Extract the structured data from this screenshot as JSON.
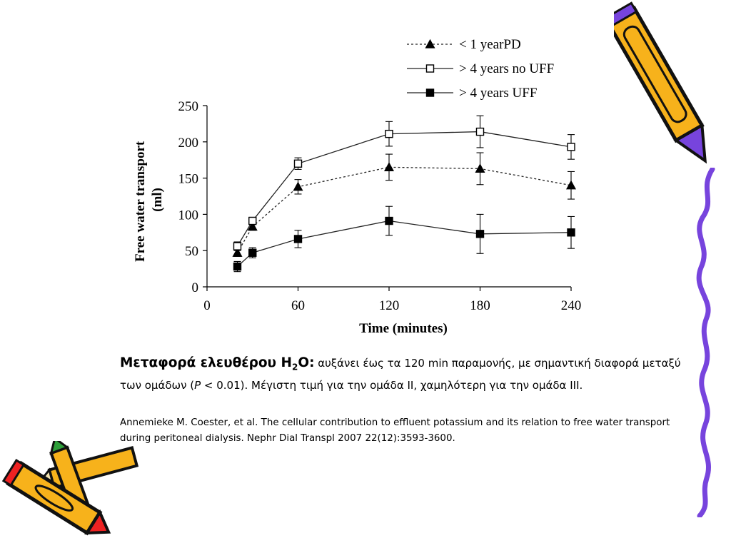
{
  "chart_data": {
    "type": "line",
    "xlabel": "Time (minutes)",
    "ylabel_lines": [
      "Free water transport",
      "(ml)"
    ],
    "xlim": [
      0,
      240
    ],
    "ylim": [
      0,
      250
    ],
    "xticks": [
      "0",
      "60",
      "120",
      "180",
      "240"
    ],
    "yticks": [
      "0",
      "50",
      "100",
      "150",
      "200",
      "250"
    ],
    "grid": false,
    "legend_position": "top-right",
    "series": [
      {
        "name": "< 1 yearPD",
        "marker": "triangle",
        "fill": "filled",
        "line": "dotted",
        "x": [
          20,
          30,
          60,
          120,
          180,
          240
        ],
        "y": [
          47,
          83,
          138,
          165,
          163,
          140
        ],
        "err": [
          5,
          5,
          10,
          18,
          22,
          19
        ]
      },
      {
        "name": "> 4 years no UFF",
        "marker": "square",
        "fill": "open",
        "line": "solid",
        "x": [
          20,
          30,
          60,
          120,
          180,
          240
        ],
        "y": [
          56,
          91,
          170,
          211,
          214,
          193
        ],
        "err": [
          6,
          5,
          8,
          17,
          22,
          17
        ]
      },
      {
        "name": "> 4 years UFF",
        "marker": "square",
        "fill": "filled",
        "line": "solid",
        "x": [
          20,
          30,
          60,
          120,
          180,
          240
        ],
        "y": [
          28,
          47,
          66,
          91,
          73,
          75
        ],
        "err": [
          7,
          7,
          12,
          20,
          27,
          22
        ]
      }
    ]
  },
  "caption": {
    "lead_text": "Μεταφορά ελευθέρου H",
    "lead_sub": "2",
    "lead_after": "O:",
    "body_1": " αυξάνει έως τα 120 min παραμονής, με σημαντική διαφορά μεταξύ των ομάδων (",
    "p_italic": "P",
    "body_2": " < 0.01). Μέγιστη τιμή για την ομάδα ΙΙ, χαμηλότερη για την ομάδα ΙΙΙ."
  },
  "reference": "Annemieke M. Coester, et al. The cellular contribution to effluent potassium and its relation to free water transport during peritoneal dialysis. Nephr Dial Transpl 2007 22(12):3593-3600.",
  "decorations": {
    "pencil_yellow": "#f7b21b",
    "pencil_purple": "#7744dd",
    "pencil_red": "#ee2222",
    "pencil_green": "#2e9f3a",
    "squiggle_color": "#7744dd",
    "icons": [
      "pencil-icon",
      "pencils-cluster-icon",
      "squiggle-border-icon"
    ]
  }
}
